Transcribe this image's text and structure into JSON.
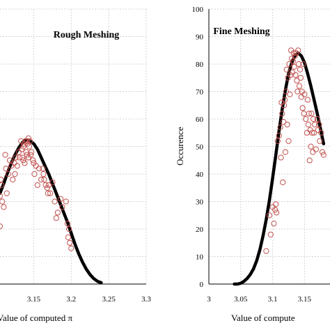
{
  "chart_data": [
    {
      "type": "scatter",
      "title": "Rough Meshing",
      "xlabel": "Value of computed π",
      "ylabel": "",
      "x_ticks": [
        "3.15",
        "3.2",
        "3.25",
        "3.3"
      ],
      "xlim": [
        3.105,
        3.3
      ],
      "ylim": [
        0,
        100
      ],
      "grid": true,
      "series": [
        {
          "kind": "points",
          "x": [
            3.105,
            3.106,
            3.108,
            3.11,
            3.112,
            3.114,
            3.116,
            3.118,
            3.12,
            3.122,
            3.124,
            3.126,
            3.128,
            3.13,
            3.131,
            3.133,
            3.134,
            3.135,
            3.136,
            3.137,
            3.138,
            3.139,
            3.14,
            3.141,
            3.141,
            3.142,
            3.143,
            3.144,
            3.145,
            3.146,
            3.147,
            3.149,
            3.151,
            3.153,
            3.155,
            3.157,
            3.16,
            3.162,
            3.164,
            3.166,
            3.168,
            3.169,
            3.172,
            3.175,
            3.178,
            3.182,
            3.186,
            3.188,
            3.193,
            3.195,
            3.197,
            3.198,
            3.2,
            3.105,
            3.107,
            3.113,
            3.125,
            3.136,
            3.143,
            3.15,
            3.163,
            3.17,
            3.18,
            3.196
          ],
          "y": [
            21,
            38,
            30,
            28,
            47,
            33,
            40,
            45,
            43,
            38,
            44,
            46,
            43,
            48,
            46,
            52,
            49,
            46,
            50,
            51,
            44,
            52,
            48,
            52,
            47,
            51,
            46,
            50,
            52,
            47,
            48,
            45,
            40,
            43,
            36,
            42,
            38,
            42,
            38,
            36,
            35,
            33,
            33,
            37,
            30,
            26,
            31,
            28,
            30,
            22,
            20,
            15,
            13,
            32,
            36,
            42,
            40,
            45,
            53,
            44,
            40,
            36,
            24,
            17
          ]
        },
        {
          "kind": "fit",
          "x": [
            3.105,
            3.11,
            3.115,
            3.12,
            3.125,
            3.13,
            3.135,
            3.14,
            3.145,
            3.15,
            3.155,
            3.16,
            3.165,
            3.17,
            3.175,
            3.18,
            3.185,
            3.19,
            3.195,
            3.2,
            3.205,
            3.21,
            3.215,
            3.22,
            3.225,
            3.23,
            3.235,
            3.24
          ],
          "y": [
            33,
            36.5,
            40.5,
            44,
            47,
            49.5,
            51.5,
            52.5,
            52,
            51,
            49,
            46,
            43,
            40,
            36.5,
            33,
            29.5,
            26,
            22.5,
            18.5,
            14.5,
            11,
            8,
            5.5,
            3.5,
            2,
            1,
            0.5
          ]
        }
      ]
    },
    {
      "type": "scatter",
      "title": "Fine Meshing",
      "xlabel": "Value of compute",
      "ylabel": "Occurence",
      "x_ticks": [
        "3",
        "3.05",
        "3.1",
        "3.15"
      ],
      "y_ticks": [
        "0",
        "10",
        "20",
        "30",
        "40",
        "50",
        "60",
        "70",
        "80",
        "90",
        "100"
      ],
      "xlim": [
        3,
        3.19
      ],
      "ylim": [
        0,
        100
      ],
      "grid": true,
      "series": [
        {
          "kind": "points",
          "x": [
            3.09,
            3.095,
            3.097,
            3.1,
            3.102,
            3.104,
            3.105,
            3.106,
            3.108,
            3.11,
            3.112,
            3.113,
            3.114,
            3.115,
            3.116,
            3.117,
            3.118,
            3.119,
            3.12,
            3.121,
            3.122,
            3.123,
            3.124,
            3.125,
            3.126,
            3.127,
            3.128,
            3.129,
            3.13,
            3.131,
            3.132,
            3.133,
            3.134,
            3.135,
            3.136,
            3.137,
            3.138,
            3.139,
            3.14,
            3.141,
            3.142,
            3.143,
            3.144,
            3.145,
            3.146,
            3.147,
            3.148,
            3.149,
            3.15,
            3.152,
            3.154,
            3.155,
            3.156,
            3.157,
            3.158,
            3.159,
            3.16,
            3.161,
            3.162,
            3.163,
            3.164,
            3.165,
            3.166,
            3.168,
            3.17,
            3.171,
            3.173,
            3.174,
            3.176,
            3.178,
            3.18
          ],
          "y": [
            12,
            25,
            18,
            28,
            22,
            27,
            29,
            26,
            52,
            54,
            57,
            46,
            66,
            62,
            37,
            59,
            65,
            67,
            48,
            70,
            78,
            58,
            75,
            52,
            80,
            69,
            76,
            85,
            82,
            77,
            81,
            84,
            79,
            83,
            76,
            84,
            74,
            70,
            85,
            80,
            72,
            78,
            75,
            68,
            70,
            64,
            80,
            62,
            69,
            60,
            55,
            67,
            58,
            62,
            45,
            56,
            50,
            62,
            55,
            48,
            60,
            55,
            58,
            49,
            60,
            56,
            58,
            52,
            55,
            48,
            47
          ]
        },
        {
          "kind": "fit",
          "x": [
            3.04,
            3.045,
            3.05,
            3.055,
            3.06,
            3.065,
            3.07,
            3.075,
            3.08,
            3.085,
            3.09,
            3.095,
            3.1,
            3.105,
            3.11,
            3.115,
            3.12,
            3.125,
            3.13,
            3.135,
            3.14,
            3.145,
            3.15,
            3.155,
            3.16,
            3.165,
            3.17,
            3.175,
            3.18
          ],
          "y": [
            0,
            0,
            0.3,
            1,
            2,
            3.5,
            5.5,
            8.5,
            12.5,
            17.5,
            23.5,
            30.5,
            38.5,
            47,
            55.5,
            63.5,
            70.5,
            76.5,
            80.5,
            83,
            84,
            83,
            80.5,
            76.5,
            72,
            67,
            62,
            56.5,
            51
          ]
        }
      ]
    }
  ]
}
